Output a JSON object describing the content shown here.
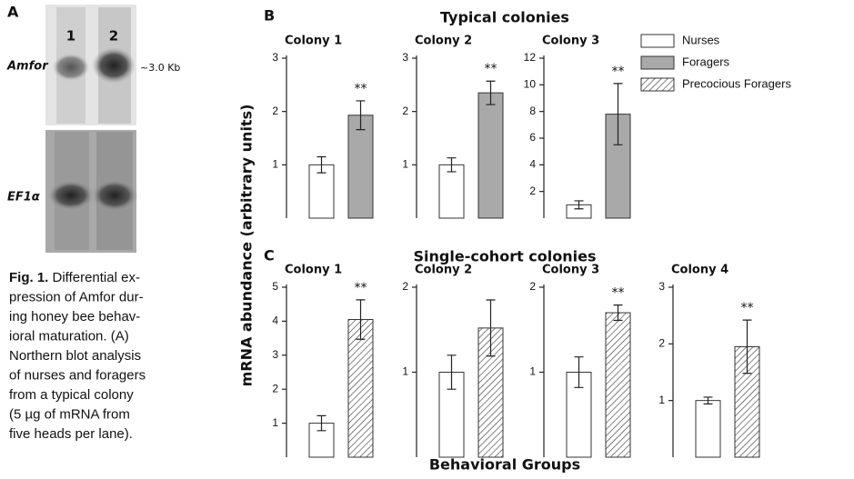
{
  "panel_a": {
    "label": "A",
    "lanes": [
      "1",
      "2"
    ],
    "probe_top": "Amfor",
    "size_label": "~3.0 Kb",
    "probe_bottom": "EF1α"
  },
  "caption": {
    "label": "Fig. 1.",
    "lines": [
      " Differential ex-",
      "pression of Amfor dur-",
      "ing honey bee behav-",
      "ioral maturation. (A)",
      "Northern blot analysis",
      "of nurses and foragers",
      "from a typical colony",
      "(5 µg of mRNA from",
      "five heads per lane)."
    ]
  },
  "panel_b": {
    "label": "B",
    "title": "Typical colonies"
  },
  "panel_c": {
    "label": "C",
    "title": "Single-cohort colonies"
  },
  "y_label": "mRNA abundance (arbitrary units)",
  "x_label": "Behavioral Groups",
  "legend": [
    {
      "name": "Nurses",
      "fill": "#ffffff"
    },
    {
      "name": "Foragers",
      "fill": "#a9a9a9"
    },
    {
      "name": "Precocious Foragers",
      "fill": "hatch"
    }
  ],
  "chart_data": [
    {
      "type": "bar",
      "title": "Colony 1",
      "categories": [
        null,
        null
      ],
      "values": [
        1.0,
        1.93
      ],
      "errors": [
        0.15,
        0.27
      ],
      "fills": [
        "#ffffff",
        "#a9a9a9"
      ],
      "annotation": "**",
      "ylim": [
        0,
        3
      ],
      "yticks": [
        1,
        2,
        3
      ]
    },
    {
      "type": "bar",
      "title": "Colony 2",
      "categories": [
        null,
        null
      ],
      "values": [
        1.0,
        2.35
      ],
      "errors": [
        0.13,
        0.22
      ],
      "fills": [
        "#ffffff",
        "#a9a9a9"
      ],
      "annotation": "**",
      "ylim": [
        0,
        3
      ],
      "yticks": [
        1,
        2,
        3
      ]
    },
    {
      "type": "bar",
      "title": "Colony 3",
      "categories": [
        null,
        null
      ],
      "values": [
        1.0,
        7.8
      ],
      "errors": [
        0.3,
        2.3
      ],
      "fills": [
        "#ffffff",
        "#a9a9a9"
      ],
      "annotation": "**",
      "ylim": [
        0,
        12
      ],
      "yticks": [
        2,
        4,
        6,
        8,
        10,
        12
      ]
    },
    {
      "type": "bar",
      "title": "Colony 1",
      "categories": [
        null,
        null
      ],
      "values": [
        1.0,
        4.05
      ],
      "errors": [
        0.22,
        0.58
      ],
      "fills": [
        "#ffffff",
        "hatch"
      ],
      "annotation": "**",
      "ylim": [
        0,
        5
      ],
      "yticks": [
        1,
        2,
        3,
        4,
        5
      ]
    },
    {
      "type": "bar",
      "title": "Colony 2",
      "categories": [
        null,
        null
      ],
      "values": [
        1.0,
        1.52
      ],
      "errors": [
        0.2,
        0.33
      ],
      "fills": [
        "#ffffff",
        "hatch"
      ],
      "ylim": [
        0,
        2
      ],
      "yticks": [
        1,
        2
      ]
    },
    {
      "type": "bar",
      "title": "Colony 3",
      "categories": [
        null,
        null
      ],
      "values": [
        1.0,
        1.7
      ],
      "errors": [
        0.18,
        0.09
      ],
      "fills": [
        "#ffffff",
        "hatch"
      ],
      "annotation": "**",
      "ylim": [
        0,
        2
      ],
      "yticks": [
        1,
        2
      ]
    },
    {
      "type": "bar",
      "title": "Colony 4",
      "categories": [
        null,
        null
      ],
      "values": [
        1.0,
        1.95
      ],
      "errors": [
        0.06,
        0.47
      ],
      "fills": [
        "#ffffff",
        "hatch"
      ],
      "annotation": "**",
      "ylim": [
        0,
        3
      ],
      "yticks": [
        1,
        2,
        3
      ]
    }
  ]
}
